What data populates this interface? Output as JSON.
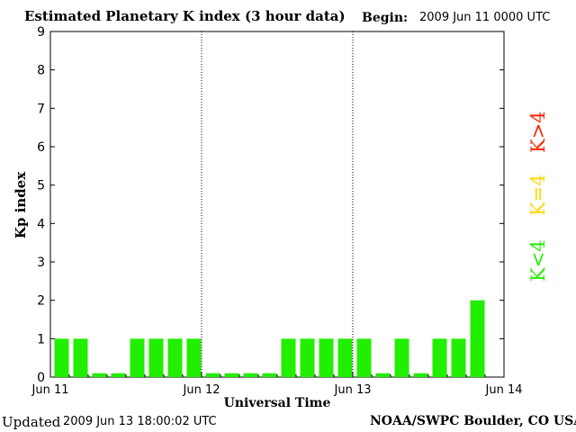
{
  "header": {
    "title": "Estimated Planetary K index (3 hour data)",
    "begin_label": "Begin:",
    "begin_value": "2009 Jun 11 0000 UTC"
  },
  "footer": {
    "updated_label": "Updated",
    "updated_value": "2009 Jun 13 18:00:02 UTC",
    "credit": "NOAA/SWPC Boulder, CO USA"
  },
  "legend": {
    "high": {
      "label": "K>4",
      "color": "#ff2200"
    },
    "equal": {
      "label": "K=4",
      "color": "#ffd700"
    },
    "low": {
      "label": "K<4",
      "color": "#22ee00"
    }
  },
  "chart_data": {
    "type": "bar",
    "title": "Estimated Planetary K index (3 hour data)",
    "xlabel": "Universal Time",
    "ylabel": "Kp index",
    "ylim": [
      0,
      9
    ],
    "yticks": [
      "0",
      "1",
      "2",
      "3",
      "4",
      "5",
      "6",
      "7",
      "8",
      "9"
    ],
    "xticks": [
      "Jun 11",
      "Jun 12",
      "Jun 13",
      "Jun 14"
    ],
    "day_separators": [
      "Jun 12",
      "Jun 13"
    ],
    "interval": "3 hour",
    "series": [
      {
        "values": [
          1,
          1,
          0,
          0,
          1,
          1,
          1,
          1,
          0,
          0,
          0,
          0,
          1,
          1,
          1,
          1,
          1,
          0,
          1,
          0,
          1,
          1,
          2
        ]
      }
    ],
    "bar_color": "#22ee00"
  }
}
